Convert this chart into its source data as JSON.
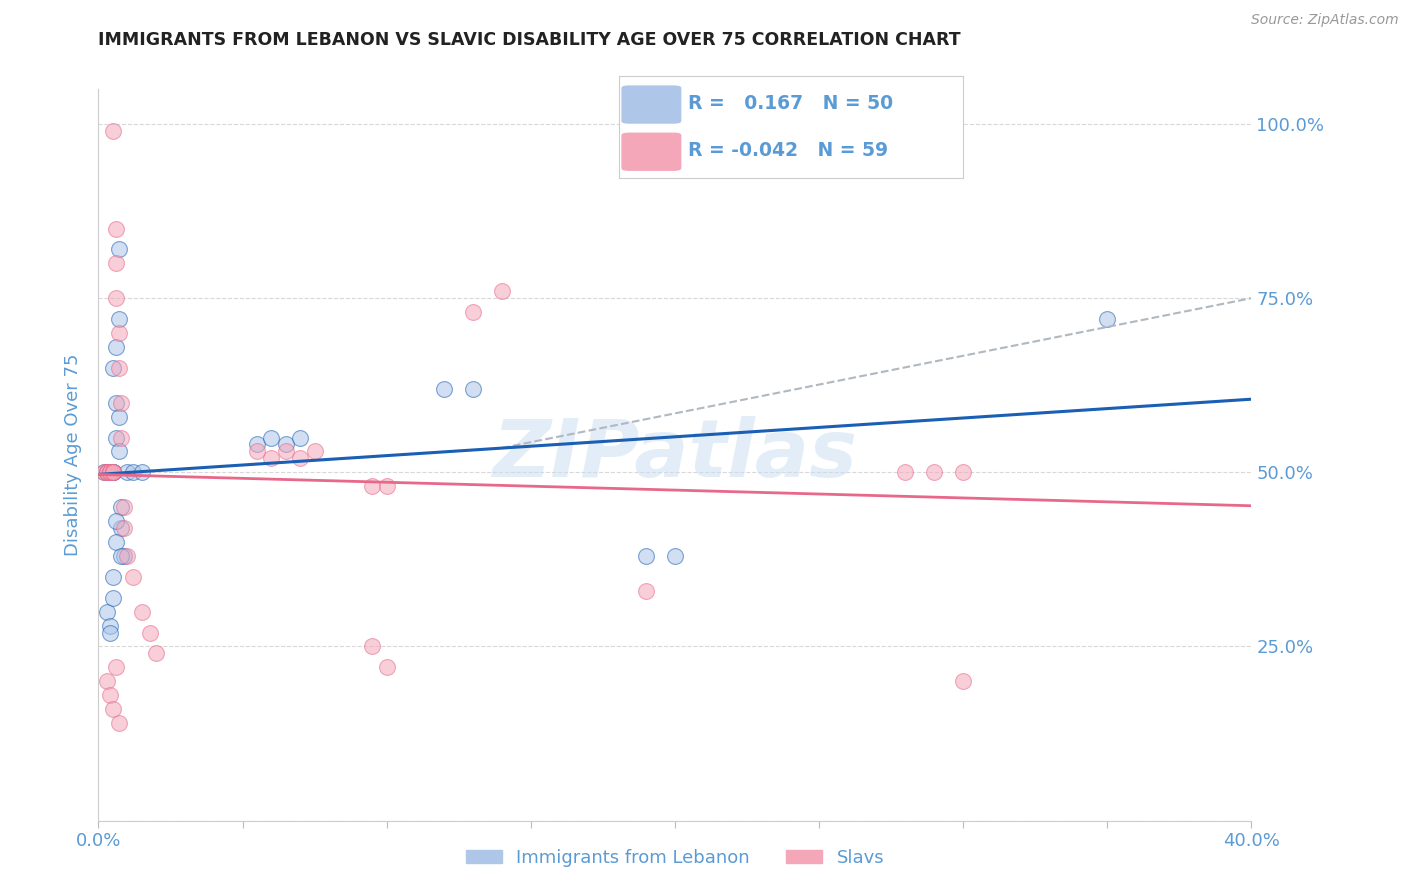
{
  "title": "IMMIGRANTS FROM LEBANON VS SLAVIC DISABILITY AGE OVER 75 CORRELATION CHART",
  "source": "Source: ZipAtlas.com",
  "ylabel": "Disability Age Over 75",
  "xlim": [
    0.0,
    0.4
  ],
  "ylim": [
    0.0,
    1.05
  ],
  "ytick_vals": [
    0.0,
    0.25,
    0.5,
    0.75,
    1.0
  ],
  "xtick_vals": [
    0.0,
    0.05,
    0.1,
    0.15,
    0.2,
    0.25,
    0.3,
    0.35,
    0.4
  ],
  "blue_scatter_x": [
    0.002,
    0.003,
    0.003,
    0.004,
    0.004,
    0.004,
    0.005,
    0.005,
    0.005,
    0.005,
    0.005,
    0.006,
    0.006,
    0.006,
    0.007,
    0.007,
    0.007,
    0.008,
    0.008,
    0.009,
    0.003,
    0.004,
    0.004,
    0.005,
    0.005,
    0.006,
    0.006,
    0.007,
    0.008,
    0.01,
    0.012,
    0.015,
    0.055,
    0.06,
    0.065,
    0.07,
    0.12,
    0.13,
    0.19,
    0.2,
    0.35
  ],
  "blue_scatter_y": [
    0.5,
    0.5,
    0.5,
    0.5,
    0.5,
    0.5,
    0.5,
    0.5,
    0.5,
    0.5,
    0.65,
    0.6,
    0.55,
    0.68,
    0.72,
    0.58,
    0.53,
    0.45,
    0.42,
    0.38,
    0.3,
    0.28,
    0.27,
    0.35,
    0.32,
    0.4,
    0.43,
    0.82,
    0.38,
    0.5,
    0.5,
    0.5,
    0.54,
    0.55,
    0.54,
    0.55,
    0.62,
    0.62,
    0.38,
    0.38,
    0.72
  ],
  "pink_scatter_x": [
    0.002,
    0.003,
    0.003,
    0.003,
    0.004,
    0.004,
    0.004,
    0.005,
    0.005,
    0.005,
    0.005,
    0.006,
    0.006,
    0.006,
    0.007,
    0.007,
    0.008,
    0.008,
    0.009,
    0.009,
    0.01,
    0.012,
    0.015,
    0.018,
    0.02,
    0.003,
    0.004,
    0.005,
    0.006,
    0.007,
    0.055,
    0.06,
    0.065,
    0.07,
    0.075,
    0.095,
    0.1,
    0.13,
    0.14,
    0.19,
    0.095,
    0.1,
    0.28,
    0.29,
    0.3,
    0.3
  ],
  "pink_scatter_y": [
    0.5,
    0.5,
    0.5,
    0.5,
    0.5,
    0.5,
    0.5,
    0.5,
    0.5,
    0.5,
    0.99,
    0.85,
    0.8,
    0.75,
    0.7,
    0.65,
    0.6,
    0.55,
    0.45,
    0.42,
    0.38,
    0.35,
    0.3,
    0.27,
    0.24,
    0.2,
    0.18,
    0.16,
    0.22,
    0.14,
    0.53,
    0.52,
    0.53,
    0.52,
    0.53,
    0.48,
    0.48,
    0.73,
    0.76,
    0.33,
    0.25,
    0.22,
    0.5,
    0.5,
    0.5,
    0.2
  ],
  "blue_line_color": "#1a5fb4",
  "pink_line_color": "#e8688a",
  "dashed_line_color": "#b0b8c0",
  "scatter_blue_face": "#aec6e8",
  "scatter_pink_face": "#f4a7b9",
  "background_color": "#ffffff",
  "grid_color": "#d8d8d8",
  "title_color": "#222222",
  "axis_label_color": "#5b9bd5",
  "tick_label_color": "#5b9bd5",
  "R_blue": 0.167,
  "N_blue": 50,
  "R_pink": -0.042,
  "N_pink": 59,
  "legend_label_blue": "Immigrants from Lebanon",
  "legend_label_pink": "Slavs",
  "watermark": "ZIPatlas",
  "blue_line_x": [
    0.0,
    0.4
  ],
  "blue_line_y": [
    0.497,
    0.605
  ],
  "pink_line_x": [
    0.0,
    0.4
  ],
  "pink_line_y": [
    0.497,
    0.452
  ],
  "dash_line_x": [
    0.14,
    0.4
  ],
  "dash_line_y": [
    0.535,
    0.75
  ]
}
